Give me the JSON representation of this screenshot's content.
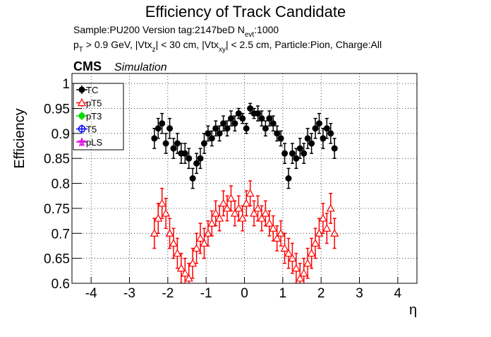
{
  "chart_data": {
    "type": "scatter",
    "title": "Efficiency of Track Candidate",
    "subtitle_lines": [
      [
        "Sample:PU200   Version tag:2147beD  N",
        "evt",
        ":1000"
      ],
      [
        "p",
        "T",
        " > 0.9 GeV, |Vtx",
        "z",
        "| < 30 cm, |Vtx",
        "xy",
        "| < 2.5 cm, Particle:Pion, Charge:All"
      ]
    ],
    "experiment": "CMS",
    "experiment_note": "Simulation",
    "x_label": "η",
    "y_label": "Efficiency",
    "xlim": [
      -4.5,
      4.5
    ],
    "xticks": [
      -4,
      -3,
      -2,
      -1,
      0,
      1,
      2,
      3,
      4
    ],
    "ylim": [
      0.6,
      1.02
    ],
    "yticks": [
      0.6,
      0.65,
      0.7,
      0.75,
      0.8,
      0.85,
      0.9,
      0.95,
      1
    ],
    "grid": true,
    "legend_position": "upper-left",
    "x": [
      -2.35,
      -2.25,
      -2.15,
      -2.05,
      -1.95,
      -1.85,
      -1.75,
      -1.65,
      -1.55,
      -1.45,
      -1.35,
      -1.25,
      -1.15,
      -1.05,
      -0.95,
      -0.85,
      -0.75,
      -0.65,
      -0.55,
      -0.45,
      -0.35,
      -0.25,
      -0.15,
      -0.05,
      0.05,
      0.15,
      0.25,
      0.35,
      0.45,
      0.55,
      0.65,
      0.75,
      0.85,
      0.95,
      1.05,
      1.15,
      1.25,
      1.35,
      1.45,
      1.55,
      1.65,
      1.75,
      1.85,
      1.95,
      2.05,
      2.15,
      2.25,
      2.35
    ],
    "series": [
      {
        "name": "TC",
        "color": "#000000",
        "marker": "filled-circle",
        "values": [
          0.89,
          0.91,
          0.92,
          0.88,
          0.91,
          0.87,
          0.88,
          0.86,
          0.86,
          0.85,
          0.81,
          0.84,
          0.85,
          0.88,
          0.9,
          0.89,
          0.91,
          0.9,
          0.92,
          0.91,
          0.93,
          0.92,
          0.94,
          0.93,
          0.91,
          0.95,
          0.94,
          0.94,
          0.93,
          0.91,
          0.93,
          0.92,
          0.9,
          0.89,
          0.86,
          0.81,
          0.86,
          0.85,
          0.87,
          0.86,
          0.89,
          0.88,
          0.91,
          0.92,
          0.89,
          0.91,
          0.9,
          0.87
        ],
        "errors": [
          0.02,
          0.02,
          0.02,
          0.02,
          0.02,
          0.02,
          0.02,
          0.02,
          0.02,
          0.02,
          0.02,
          0.02,
          0.02,
          0.02,
          0.015,
          0.015,
          0.015,
          0.015,
          0.015,
          0.015,
          0.015,
          0.015,
          0.01,
          0.01,
          0.01,
          0.01,
          0.01,
          0.015,
          0.015,
          0.015,
          0.015,
          0.015,
          0.015,
          0.015,
          0.02,
          0.02,
          0.02,
          0.02,
          0.02,
          0.02,
          0.02,
          0.02,
          0.02,
          0.02,
          0.02,
          0.02,
          0.02,
          0.02
        ]
      },
      {
        "name": "pT5",
        "color": "#ff0000",
        "marker": "open-triangle",
        "values": [
          0.7,
          0.73,
          0.76,
          0.74,
          0.7,
          0.68,
          0.66,
          0.63,
          0.62,
          0.61,
          0.64,
          0.67,
          0.69,
          0.68,
          0.7,
          0.72,
          0.74,
          0.73,
          0.76,
          0.75,
          0.77,
          0.74,
          0.75,
          0.73,
          0.76,
          0.78,
          0.74,
          0.75,
          0.73,
          0.74,
          0.72,
          0.71,
          0.69,
          0.7,
          0.67,
          0.66,
          0.65,
          0.63,
          0.61,
          0.62,
          0.64,
          0.66,
          0.68,
          0.7,
          0.73,
          0.71,
          0.75,
          0.7
        ],
        "errors": [
          0.03,
          0.03,
          0.03,
          0.03,
          0.03,
          0.03,
          0.03,
          0.03,
          0.03,
          0.03,
          0.03,
          0.03,
          0.03,
          0.03,
          0.025,
          0.025,
          0.025,
          0.025,
          0.025,
          0.025,
          0.025,
          0.025,
          0.025,
          0.025,
          0.025,
          0.025,
          0.025,
          0.025,
          0.025,
          0.025,
          0.025,
          0.025,
          0.025,
          0.025,
          0.03,
          0.03,
          0.03,
          0.03,
          0.03,
          0.03,
          0.03,
          0.03,
          0.03,
          0.03,
          0.03,
          0.03,
          0.03,
          0.03
        ]
      },
      {
        "name": "pT3",
        "color": "#00dd00",
        "marker": "filled-circle",
        "values": [
          null,
          null,
          null,
          null,
          null,
          null,
          null,
          null,
          null,
          null,
          null,
          null,
          null,
          null,
          null,
          null,
          null,
          null,
          null,
          null,
          null,
          null,
          null,
          null,
          null,
          null,
          null,
          null,
          null,
          null,
          null,
          null,
          null,
          null,
          null,
          null,
          null,
          null,
          null,
          null,
          null,
          null,
          null,
          null,
          null,
          null,
          null,
          null
        ]
      },
      {
        "name": "T5",
        "color": "#0000ff",
        "marker": "open-circle",
        "values": [
          null,
          null,
          null,
          null,
          null,
          null,
          null,
          null,
          null,
          null,
          null,
          null,
          null,
          null,
          null,
          null,
          null,
          null,
          null,
          null,
          null,
          null,
          null,
          null,
          null,
          null,
          null,
          null,
          null,
          null,
          null,
          null,
          null,
          null,
          null,
          null,
          null,
          null,
          null,
          null,
          null,
          null,
          null,
          null,
          null,
          null,
          null,
          null
        ]
      },
      {
        "name": "pLS",
        "color": "#dd00dd",
        "marker": "star",
        "values": [
          null,
          null,
          null,
          null,
          null,
          null,
          null,
          null,
          null,
          null,
          null,
          null,
          null,
          null,
          null,
          null,
          null,
          null,
          null,
          null,
          null,
          null,
          null,
          null,
          null,
          null,
          null,
          null,
          null,
          null,
          null,
          null,
          null,
          null,
          null,
          null,
          null,
          null,
          null,
          null,
          null,
          null,
          null,
          null,
          null,
          null,
          null,
          null
        ]
      }
    ]
  }
}
